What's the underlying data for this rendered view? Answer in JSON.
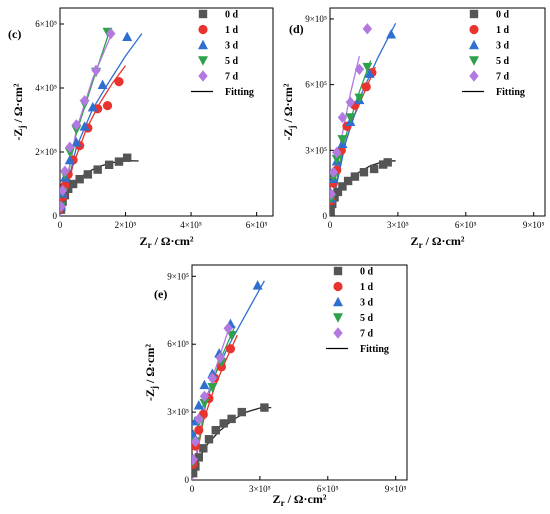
{
  "colors": {
    "0 d": "#555555",
    "1 d": "#e8332f",
    "3 d": "#2f6fd0",
    "5 d": "#2ea24a",
    "7 d": "#b27ae0",
    "Fitting": "#000000",
    "fit_0 d": "#222222"
  },
  "chart_data": [
    {
      "type": "scatter",
      "panel_label": "(c)",
      "xlabel_main": "Z",
      "xlabel_sub": "r",
      "xlabel_unit": " / Ω·cm²",
      "ylabel_main": "-Z",
      "ylabel_sub": "j",
      "ylabel_unit": " / Ω·cm²",
      "xlim": [
        0,
        650000
      ],
      "ylim": [
        0,
        650000
      ],
      "xticks": [
        0,
        200000,
        400000,
        600000
      ],
      "yticks": [
        0,
        200000,
        400000,
        600000
      ],
      "xticklabels": [
        "0",
        "2×10⁵",
        "4×10⁵",
        "6×10⁵"
      ],
      "yticklabels": [
        "0",
        "2×10⁵",
        "4×10⁵",
        "6×10⁵"
      ],
      "legend": [
        "0 d",
        "1 d",
        "3 d",
        "5 d",
        "7 d",
        "Fitting"
      ],
      "series": [
        {
          "name": "0 d",
          "marker": "square",
          "x": [
            3000,
            8000,
            15000,
            25000,
            40000,
            60000,
            85000,
            115000,
            150000,
            180000,
            205000
          ],
          "y": [
            20000,
            45000,
            65000,
            85000,
            100000,
            115000,
            130000,
            145000,
            160000,
            170000,
            182000
          ]
        },
        {
          "name": "1 d",
          "marker": "circle",
          "x": [
            3000,
            8000,
            15000,
            25000,
            40000,
            60000,
            85000,
            115000,
            145000,
            180000
          ],
          "y": [
            25000,
            60000,
            95000,
            130000,
            175000,
            220000,
            275000,
            335000,
            345000,
            420000
          ]
        },
        {
          "name": "3 d",
          "marker": "triangle-up",
          "x": [
            3000,
            8000,
            15000,
            30000,
            50000,
            75000,
            100000,
            130000,
            205000
          ],
          "y": [
            30000,
            70000,
            120000,
            175000,
            230000,
            280000,
            340000,
            410000,
            560000
          ]
        },
        {
          "name": "5 d",
          "marker": "triangle-down",
          "x": [
            3000,
            8000,
            15000,
            30000,
            50000,
            75000,
            110000,
            145000
          ],
          "y": [
            30000,
            75000,
            130000,
            200000,
            270000,
            350000,
            450000,
            575000
          ]
        },
        {
          "name": "7 d",
          "marker": "diamond",
          "x": [
            3000,
            8000,
            15000,
            30000,
            50000,
            75000,
            110000,
            155000
          ],
          "y": [
            30000,
            80000,
            140000,
            215000,
            285000,
            360000,
            455000,
            570000
          ]
        }
      ],
      "fits": [
        {
          "name": "0 d",
          "x": [
            0,
            15000,
            40000,
            80000,
            120000,
            160000,
            200000,
            240000
          ],
          "y": [
            0,
            60000,
            100000,
            135000,
            155000,
            167000,
            173000,
            172000
          ]
        },
        {
          "name": "1 d",
          "x": [
            0,
            40000,
            80000,
            120000,
            160000,
            200000
          ],
          "y": [
            0,
            160000,
            270000,
            350000,
            415000,
            470000
          ]
        },
        {
          "name": "3 d",
          "x": [
            0,
            50000,
            100000,
            150000,
            200000,
            250000
          ],
          "y": [
            0,
            215000,
            335000,
            420000,
            500000,
            570000
          ]
        },
        {
          "name": "5 d",
          "x": [
            0,
            50000,
            100000,
            150000
          ],
          "y": [
            0,
            260000,
            420000,
            575000
          ]
        },
        {
          "name": "7 d",
          "x": [
            0,
            50000,
            100000,
            160000
          ],
          "y": [
            0,
            270000,
            430000,
            575000
          ]
        }
      ]
    },
    {
      "type": "scatter",
      "panel_label": "(d)",
      "xlabel_main": "Z",
      "xlabel_sub": "r",
      "xlabel_unit": " / Ω·cm²",
      "ylabel_main": "-Z",
      "ylabel_sub": "j",
      "ylabel_unit": " / Ω·cm²",
      "xlim": [
        0,
        950000
      ],
      "ylim": [
        0,
        950000
      ],
      "xticks": [
        0,
        300000,
        600000,
        900000
      ],
      "yticks": [
        0,
        300000,
        600000,
        900000
      ],
      "xticklabels": [
        "0",
        "3×10⁵",
        "6×10⁵",
        "9×10⁵"
      ],
      "yticklabels": [
        "0",
        "3×10⁵",
        "6×10⁵",
        "9×10⁵"
      ],
      "legend": [
        "0 d",
        "1 d",
        "3 d",
        "5 d",
        "7 d",
        "Fitting"
      ],
      "series": [
        {
          "name": "0 d",
          "marker": "square",
          "x": [
            3000,
            10000,
            20000,
            35000,
            55000,
            80000,
            110000,
            150000,
            195000,
            235000,
            255000
          ],
          "y": [
            20000,
            55000,
            85000,
            110000,
            135000,
            160000,
            180000,
            200000,
            215000,
            235000,
            245000
          ]
        },
        {
          "name": "1 d",
          "marker": "circle",
          "x": [
            5000,
            15000,
            30000,
            50000,
            75000,
            110000,
            160000,
            185000
          ],
          "y": [
            70000,
            150000,
            210000,
            300000,
            410000,
            505000,
            590000,
            655000
          ]
        },
        {
          "name": "3 d",
          "marker": "triangle-up",
          "x": [
            5000,
            15000,
            30000,
            55000,
            90000,
            130000,
            175000,
            270000
          ],
          "y": [
            80000,
            170000,
            250000,
            330000,
            430000,
            530000,
            650000,
            830000
          ]
        },
        {
          "name": "5 d",
          "marker": "triangle-down",
          "x": [
            5000,
            15000,
            30000,
            55000,
            90000,
            130000,
            165000
          ],
          "y": [
            80000,
            180000,
            260000,
            350000,
            450000,
            540000,
            680000
          ]
        },
        {
          "name": "7 d",
          "marker": "diamond",
          "x": [
            5000,
            15000,
            30000,
            55000,
            90000,
            130000,
            165000
          ],
          "y": [
            100000,
            200000,
            290000,
            450000,
            520000,
            670000,
            855000
          ]
        }
      ],
      "fits": [
        {
          "name": "0 d",
          "x": [
            0,
            30000,
            70000,
            120000,
            180000,
            240000,
            290000
          ],
          "y": [
            0,
            90000,
            150000,
            195000,
            230000,
            250000,
            252000
          ]
        },
        {
          "name": "1 d",
          "x": [
            0,
            50000,
            100000,
            150000,
            200000
          ],
          "y": [
            0,
            270000,
            440000,
            560000,
            680000
          ]
        },
        {
          "name": "3 d",
          "x": [
            0,
            70000,
            140000,
            210000,
            290000
          ],
          "y": [
            0,
            340000,
            560000,
            720000,
            880000
          ]
        },
        {
          "name": "5 d",
          "x": [
            0,
            60000,
            120000,
            180000
          ],
          "y": [
            0,
            330000,
            540000,
            710000
          ]
        },
        {
          "name": "7 d",
          "x": [
            0,
            40000,
            90000,
            130000
          ],
          "y": [
            0,
            300000,
            560000,
            730000
          ]
        }
      ]
    },
    {
      "type": "scatter",
      "panel_label": "(e)",
      "xlabel_main": "Z",
      "xlabel_sub": "r",
      "xlabel_unit": " / Ω·cm²",
      "ylabel_main": "-Z",
      "ylabel_sub": "j",
      "ylabel_unit": " / Ω·cm²",
      "xlim": [
        0,
        950000
      ],
      "ylim": [
        0,
        950000
      ],
      "xticks": [
        0,
        300000,
        600000,
        900000
      ],
      "yticks": [
        0,
        300000,
        600000,
        900000
      ],
      "xticklabels": [
        "0",
        "3×10⁵",
        "6×10⁵",
        "9×10⁵"
      ],
      "yticklabels": [
        "0",
        "3×10⁵",
        "6×10⁵",
        "9×10⁵"
      ],
      "legend": [
        "0 d",
        "1 d",
        "3 d",
        "5 d",
        "7 d",
        "Fitting"
      ],
      "series": [
        {
          "name": "0 d",
          "marker": "square",
          "x": [
            5000,
            15000,
            30000,
            50000,
            75000,
            105000,
            140000,
            175000,
            220000,
            320000
          ],
          "y": [
            30000,
            60000,
            100000,
            140000,
            180000,
            220000,
            250000,
            270000,
            300000,
            320000
          ]
        },
        {
          "name": "1 d",
          "marker": "circle",
          "x": [
            5000,
            15000,
            30000,
            50000,
            75000,
            100000,
            130000,
            170000
          ],
          "y": [
            70000,
            150000,
            220000,
            290000,
            360000,
            450000,
            500000,
            580000
          ]
        },
        {
          "name": "3 d",
          "marker": "triangle-up",
          "x": [
            5000,
            15000,
            30000,
            55000,
            90000,
            120000,
            170000,
            290000
          ],
          "y": [
            200000,
            260000,
            330000,
            420000,
            470000,
            560000,
            690000,
            860000
          ]
        },
        {
          "name": "5 d",
          "marker": "triangle-down",
          "x": [
            5000,
            15000,
            30000,
            55000,
            90000,
            130000,
            175000
          ],
          "y": [
            80000,
            170000,
            260000,
            340000,
            410000,
            520000,
            640000
          ]
        },
        {
          "name": "7 d",
          "marker": "diamond",
          "x": [
            5000,
            15000,
            30000,
            55000,
            90000,
            125000,
            160000
          ],
          "y": [
            90000,
            170000,
            270000,
            370000,
            450000,
            540000,
            670000
          ]
        }
      ],
      "fits": [
        {
          "name": "0 d",
          "x": [
            0,
            30000,
            70000,
            120000,
            180000,
            240000,
            300000,
            350000
          ],
          "y": [
            0,
            95000,
            160000,
            215000,
            265000,
            300000,
            318000,
            320000
          ]
        },
        {
          "name": "1 d",
          "x": [
            0,
            50000,
            100000,
            150000,
            200000
          ],
          "y": [
            0,
            260000,
            410000,
            530000,
            640000
          ]
        },
        {
          "name": "3 d",
          "x": [
            0,
            50000,
            100000,
            160000,
            220000,
            320000
          ],
          "y": [
            150000,
            330000,
            460000,
            590000,
            700000,
            880000
          ]
        },
        {
          "name": "5 d",
          "x": [
            0,
            60000,
            120000,
            190000
          ],
          "y": [
            0,
            330000,
            520000,
            680000
          ]
        },
        {
          "name": "7 d",
          "x": [
            0,
            50000,
            100000,
            160000
          ],
          "y": [
            0,
            300000,
            480000,
            660000
          ]
        }
      ]
    }
  ]
}
